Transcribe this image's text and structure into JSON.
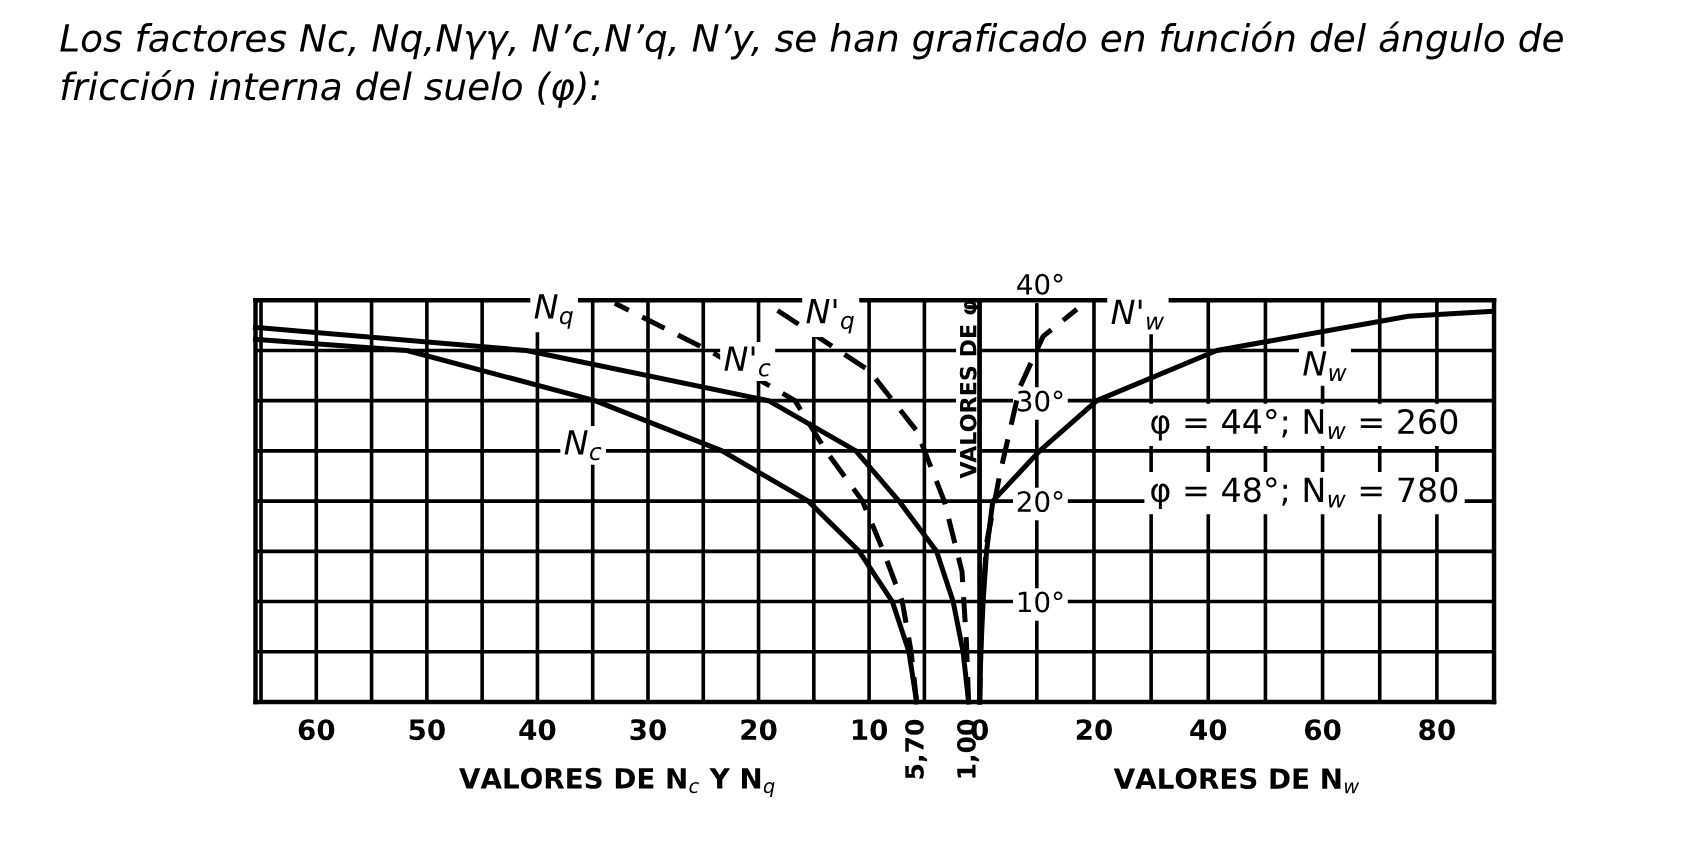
{
  "chart_data": [
    {
      "type": "line",
      "title": "Los factores Nc, Nq,Nγγ, N’c,N’q, N’y, se han graficado en función del ángulo de fricción interna del suelo (φ):",
      "xlabel": "VALORES DE N$_{c}$ Y N$_{q}$",
      "ylabel": "VALORES DE φ",
      "xlim": [
        65.5,
        0
      ],
      "xticks": [
        {
          "value": 65,
          "label": null
        },
        60,
        {
          "value": 55,
          "label": null
        },
        50,
        {
          "value": 45,
          "label": null
        },
        40,
        {
          "value": 35,
          "label": null
        },
        30,
        {
          "value": 25,
          "label": null
        },
        20,
        {
          "value": 15,
          "label": null
        },
        10,
        {
          "value": 5,
          "label": null
        }
      ],
      "ylim": [
        0,
        40
      ],
      "yticks": [
        {
          "value": 5,
          "label": null
        },
        {
          "value": 10,
          "label": null
        },
        {
          "value": 15,
          "label": null
        },
        {
          "value": 20,
          "label": null
        },
        {
          "value": 25,
          "label": null
        },
        {
          "value": 30,
          "label": null
        },
        {
          "value": 35,
          "label": null
        }
      ],
      "tick_labels": "x",
      "grid": true,
      "legend": false,
      "annotations": [
        {
          "text": "5,70",
          "x": 5.7,
          "y": 0
        },
        {
          "text": "1,00",
          "x": 1.0,
          "y": 0
        }
      ],
      "series": [
        {
          "name": "N$_{c}$",
          "color": "#000000",
          "line_style": "solid",
          "x": [
            5.7,
            6.4,
            7.9,
            10.9,
            15.5,
            23.3,
            34.8,
            51.8,
            65.5
          ],
          "values": [
            0,
            5,
            10,
            15,
            20,
            25,
            30,
            35,
            36.1
          ]
        },
        {
          "name": "N$_{q}$",
          "color": "#000000",
          "line_style": "solid",
          "x": [
            1.0,
            1.5,
            2.4,
            3.9,
            7.3,
            11.2,
            19.1,
            41,
            65.5
          ],
          "values": [
            0,
            5,
            10,
            15,
            20,
            25,
            30,
            35,
            37.3
          ]
        },
        {
          "name": "N'$_{c}$",
          "color": "#000000",
          "line_style": "dashed",
          "x": [
            5.7,
            6.2,
            7.0,
            8.7,
            10.6,
            13.9,
            16.7,
            24.5,
            33
          ],
          "values": [
            0,
            5,
            10,
            15,
            20,
            25,
            30,
            35,
            39.7
          ]
        },
        {
          "name": "N'$_{q}$",
          "color": "#000000",
          "line_style": "dashed",
          "x": [
            1.0,
            1.2,
            1.6,
            3.2,
            5.7,
            10,
            19
          ],
          "values": [
            0,
            6,
            13,
            20,
            27,
            33,
            39.5
          ]
        }
      ]
    },
    {
      "type": "line",
      "xlabel": "VALORES DE N$_{w}$",
      "xlim": [
        0,
        90
      ],
      "xticks": [
        0,
        {
          "value": 10,
          "label": null
        },
        20,
        {
          "value": 30,
          "label": null
        },
        40,
        {
          "value": 50,
          "label": null
        },
        60,
        {
          "value": 70,
          "label": null
        },
        80
      ],
      "ylim": [
        0,
        40
      ],
      "yticks": [
        {
          "value": 5,
          "label": null
        },
        {
          "value": 10,
          "label": "10°"
        },
        {
          "value": 15,
          "label": null
        },
        {
          "value": 20,
          "label": "20°"
        },
        {
          "value": 25,
          "label": null
        },
        {
          "value": 30,
          "label": "30°"
        },
        {
          "value": 35,
          "label": null
        },
        {
          "value": 40,
          "label": "40°"
        }
      ],
      "grid": true,
      "legend": false,
      "annotations": [
        "φ = 44°; N$_{w}$ = 260",
        "φ = 48°; N$_{w}$ = 780"
      ],
      "series": [
        {
          "name": "N$_{w}$",
          "color": "#000000",
          "line_style": "solid",
          "x": [
            0,
            0.2,
            0.6,
            1.2,
            2.3,
            10.5,
            20.5,
            41.5,
            75,
            89.5
          ],
          "values": [
            0,
            5,
            10,
            15,
            20,
            25,
            30,
            35,
            38.4,
            38.9
          ]
        },
        {
          "name": "N'$_{w}$",
          "color": "#000000",
          "line_style": "dashed",
          "x": [
            0,
            0.3,
            1.2,
            3.5,
            7.0,
            11.1,
            17.0
          ],
          "values": [
            0,
            8,
            15.8,
            22.6,
            31.3,
            36.4,
            39.1
          ]
        }
      ]
    }
  ]
}
